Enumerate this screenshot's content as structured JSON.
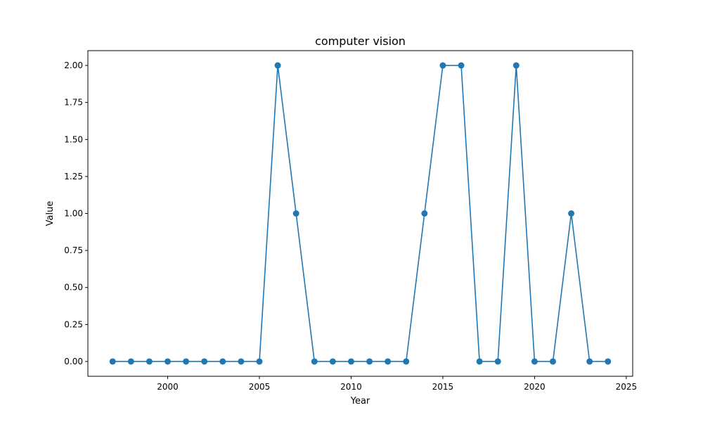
{
  "chart_data": {
    "type": "line",
    "title": "computer vision",
    "xlabel": "Year",
    "ylabel": "Value",
    "xlim": [
      1995.65,
      2025.35
    ],
    "ylim": [
      -0.1,
      2.1
    ],
    "xticks": [
      2000,
      2005,
      2010,
      2015,
      2020,
      2025
    ],
    "xtick_labels": [
      "2000",
      "2005",
      "2010",
      "2015",
      "2020",
      "2025"
    ],
    "yticks": [
      0,
      0.25,
      0.5,
      0.75,
      1.0,
      1.25,
      1.5,
      1.75,
      2.0
    ],
    "ytick_labels": [
      "0.00",
      "0.25",
      "0.50",
      "0.75",
      "1.00",
      "1.25",
      "1.50",
      "1.75",
      "2.00"
    ],
    "grid": false,
    "color": "#1f77b4",
    "series": [
      {
        "x": [
          1997,
          1998,
          1999,
          2000,
          2001,
          2002,
          2003,
          2004,
          2005,
          2006,
          2007,
          2008,
          2009,
          2010,
          2011,
          2012,
          2013,
          2014,
          2015,
          2016,
          2017,
          2018,
          2019,
          2020,
          2021,
          2022,
          2023,
          2024
        ],
        "values": [
          0,
          0,
          0,
          0,
          0,
          0,
          0,
          0,
          0,
          2,
          1,
          0,
          0,
          0,
          0,
          0,
          0,
          1,
          2,
          2,
          0,
          0,
          2,
          0,
          0,
          1,
          0,
          0
        ]
      }
    ]
  }
}
